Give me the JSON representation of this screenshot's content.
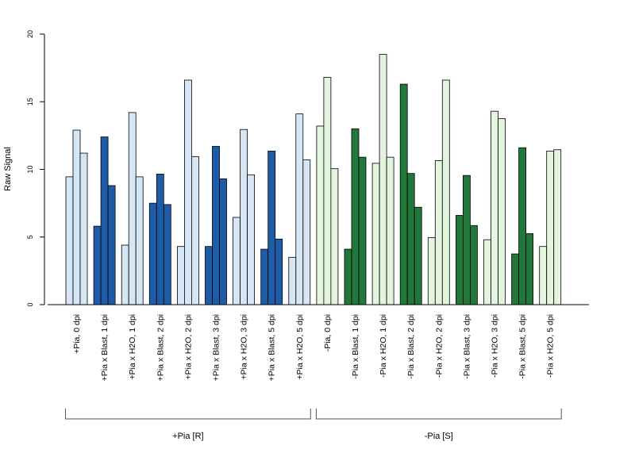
{
  "chart_data": {
    "type": "bar",
    "ylabel": "Raw Signal",
    "ylim": [
      0,
      20
    ],
    "yticks": [
      0,
      5,
      10,
      15,
      20
    ],
    "colors": {
      "pia_light": "#d6e6f5",
      "pia_dark": "#1f5ca8",
      "nopia_light": "#e3f5de",
      "nopia_dark": "#22783a",
      "bar_stroke": "#000000",
      "axis": "#000000"
    },
    "categories": [
      "+Pia, 0 dpi",
      "+Pia x Blast, 1 dpi",
      "+Pia x H2O, 1 dpi",
      "+Pia x Blast, 2 dpi",
      "+Pia x H2O, 2 dpi",
      "+Pia x Blast, 3 dpi",
      "+Pia x H2O, 3 dpi",
      "+Pia x Blast, 5 dpi",
      "+Pia x H2O, 5 dpi",
      "-Pia, 0 dpi",
      "-Pia x Blast, 1 dpi",
      "-Pia x H2O, 1 dpi",
      "-Pia x Blast, 2 dpi",
      "-Pia x H2O, 2 dpi",
      "-Pia x Blast, 3 dpi",
      "-Pia x H2O, 3 dpi",
      "-Pia x Blast, 5 dpi",
      "-Pia x H2O, 5 dpi"
    ],
    "color_keys": [
      "pia_light",
      "pia_dark",
      "pia_light",
      "pia_dark",
      "pia_light",
      "pia_dark",
      "pia_light",
      "pia_dark",
      "pia_light",
      "nopia_light",
      "nopia_dark",
      "nopia_light",
      "nopia_dark",
      "nopia_light",
      "nopia_dark",
      "nopia_light",
      "nopia_dark",
      "nopia_light"
    ],
    "replicates": [
      [
        9.45,
        12.9,
        11.2
      ],
      [
        5.8,
        12.4,
        8.8
      ],
      [
        4.4,
        14.2,
        9.45
      ],
      [
        7.5,
        9.65,
        7.4
      ],
      [
        4.3,
        16.6,
        10.95
      ],
      [
        4.3,
        11.7,
        9.3
      ],
      [
        6.45,
        12.95,
        9.6
      ],
      [
        4.1,
        11.35,
        4.85
      ],
      [
        3.5,
        14.1,
        10.7
      ],
      [
        13.2,
        16.8,
        10.05
      ],
      [
        4.1,
        13.0,
        10.9
      ],
      [
        10.45,
        18.5,
        10.9
      ],
      [
        16.3,
        9.7,
        7.2
      ],
      [
        4.95,
        10.65,
        16.6
      ],
      [
        6.6,
        9.55,
        5.85
      ],
      [
        4.8,
        14.3,
        13.75
      ],
      [
        3.75,
        11.6,
        5.25
      ],
      [
        4.3,
        11.35,
        11.45
      ]
    ],
    "groups": [
      {
        "label": "+Pia [R]",
        "from": 0,
        "to": 8
      },
      {
        "label": "-Pia [S]",
        "from": 9,
        "to": 17
      }
    ],
    "grid": false,
    "legend": "none"
  }
}
